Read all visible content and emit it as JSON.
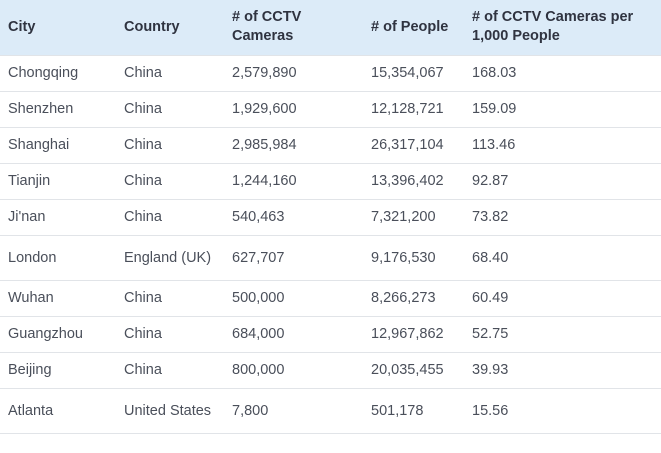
{
  "headers": {
    "city": "City",
    "country": "Country",
    "cameras": "# of CCTV Cameras",
    "people": "# of People",
    "per1000": "# of CCTV Cameras per 1,000 People"
  },
  "rows": [
    {
      "city": "Chongqing",
      "country": "China",
      "cameras": "2,579,890",
      "people": "15,354,067",
      "per1000": "168.03"
    },
    {
      "city": "Shenzhen",
      "country": "China",
      "cameras": "1,929,600",
      "people": "12,128,721",
      "per1000": "159.09"
    },
    {
      "city": "Shanghai",
      "country": "China",
      "cameras": "2,985,984",
      "people": "26,317,104",
      "per1000": "113.46"
    },
    {
      "city": "Tianjin",
      "country": "China",
      "cameras": "1,244,160",
      "people": "13,396,402",
      "per1000": "92.87"
    },
    {
      "city": "Ji'nan",
      "country": "China",
      "cameras": "540,463",
      "people": "7,321,200",
      "per1000": "73.82"
    },
    {
      "city": "London",
      "country": "England (UK)",
      "cameras": "627,707",
      "people": "9,176,530",
      "per1000": "68.40"
    },
    {
      "city": "Wuhan",
      "country": "China",
      "cameras": "500,000",
      "people": "8,266,273",
      "per1000": "60.49"
    },
    {
      "city": "Guangzhou",
      "country": "China",
      "cameras": "684,000",
      "people": "12,967,862",
      "per1000": "52.75"
    },
    {
      "city": "Beijing",
      "country": "China",
      "cameras": "800,000",
      "people": "20,035,455",
      "per1000": "39.93"
    },
    {
      "city": "Atlanta",
      "country": "United States",
      "cameras": "7,800",
      "people": "501,178",
      "per1000": "15.56"
    }
  ]
}
